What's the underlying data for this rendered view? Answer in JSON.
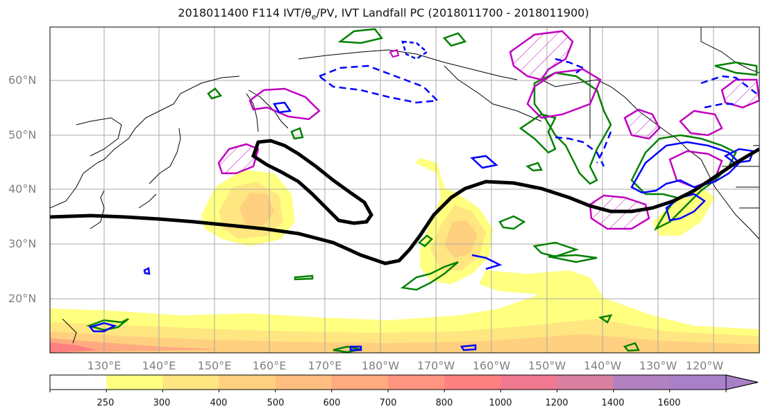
{
  "title": {
    "prefix": "2018011400 F114 IVT/",
    "theta": "θ",
    "theta_sub": "e",
    "suffix": "/PV, IVT Landfall PC (2018011700 - 2018011900)"
  },
  "map": {
    "projection": "equirectangular",
    "lon_range": [
      "120°E",
      "115°W"
    ],
    "lat_range": [
      "10°N",
      "70°N"
    ],
    "lat_labels": [
      "60°N",
      "50°N",
      "40°N",
      "30°N",
      "20°N"
    ],
    "lon_labels": [
      "130°E",
      "140°E",
      "150°E",
      "160°E",
      "170°E",
      "180°W",
      "170°W",
      "160°W",
      "150°W",
      "140°W",
      "130°W",
      "120°W"
    ],
    "gridlines": true,
    "coastlines": true
  },
  "colorbar": {
    "ticks": [
      "250",
      "300",
      "400",
      "500",
      "600",
      "700",
      "800",
      "1000",
      "1200",
      "1400",
      "1600"
    ],
    "colors": [
      "#ffffff",
      "#ffff80",
      "#ffe680",
      "#ffd080",
      "#ffbe80",
      "#ffaa80",
      "#ff9480",
      "#ff8080",
      "#f07890",
      "#d880a0",
      "#b080c0",
      "#a880c8"
    ],
    "extend": "max"
  },
  "layers": {
    "ivt_fill": "yellow-red shading",
    "thick_contour_color": "#000000",
    "pv_contour_color": "#008000",
    "theta_contour_color": "#0000ff",
    "landfall_pc_color": "#c000c0"
  }
}
